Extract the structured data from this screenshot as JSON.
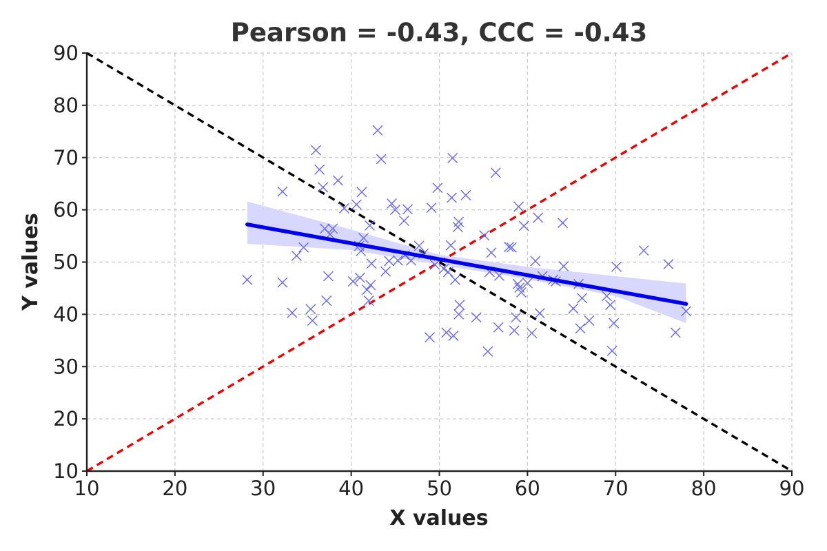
{
  "chart_data": {
    "type": "scatter",
    "title": "Pearson = -0.43, CCC = -0.43",
    "xlabel": "X values",
    "ylabel": "Y values",
    "xlim": [
      10,
      90
    ],
    "ylim": [
      10,
      90
    ],
    "xticks": [
      "10",
      "20",
      "30",
      "40",
      "50",
      "60",
      "70",
      "80",
      "90"
    ],
    "yticks": [
      "10",
      "20",
      "30",
      "40",
      "50",
      "60",
      "70",
      "80",
      "90"
    ],
    "grid": true,
    "marker": "x",
    "colors": {
      "points": "#6666f0",
      "regression": "#0000ee",
      "band": "#d6d6ff",
      "identity_line": "#ee0000",
      "anti_identity_line": "#000000",
      "grid": "#c8c8c8"
    },
    "points": [
      [
        28.2,
        46.6
      ],
      [
        32.2,
        63.5
      ],
      [
        32.2,
        46.1
      ],
      [
        33.3,
        40.3
      ],
      [
        33.8,
        51.2
      ],
      [
        34.6,
        52.8
      ],
      [
        35.4,
        41.0
      ],
      [
        35.6,
        38.8
      ],
      [
        36.0,
        71.4
      ],
      [
        36.4,
        67.7
      ],
      [
        36.8,
        64.3
      ],
      [
        37.0,
        56.4
      ],
      [
        37.2,
        42.6
      ],
      [
        37.4,
        47.3
      ],
      [
        37.6,
        55.3
      ],
      [
        37.9,
        56.4
      ],
      [
        38.5,
        65.6
      ],
      [
        39.2,
        60.3
      ],
      [
        40.2,
        46.3
      ],
      [
        40.6,
        61.0
      ],
      [
        40.9,
        53.1
      ],
      [
        41.0,
        47.0
      ],
      [
        41.1,
        52.1
      ],
      [
        41.2,
        63.4
      ],
      [
        41.4,
        54.6
      ],
      [
        41.8,
        44.7
      ],
      [
        42.0,
        42.6
      ],
      [
        42.1,
        57.0
      ],
      [
        42.2,
        45.6
      ],
      [
        42.3,
        49.7
      ],
      [
        43.0,
        75.2
      ],
      [
        43.4,
        69.7
      ],
      [
        43.9,
        48.2
      ],
      [
        44.3,
        50.2
      ],
      [
        44.6,
        61.2
      ],
      [
        45.0,
        60.0
      ],
      [
        45.3,
        50.3
      ],
      [
        46.0,
        57.9
      ],
      [
        46.1,
        51.3
      ],
      [
        46.4,
        60.1
      ],
      [
        46.8,
        50.3
      ],
      [
        47.7,
        53.1
      ],
      [
        48.2,
        51.6
      ],
      [
        48.9,
        35.6
      ],
      [
        49.1,
        60.4
      ],
      [
        49.5,
        49.5
      ],
      [
        49.8,
        64.2
      ],
      [
        50.5,
        48.7
      ],
      [
        50.8,
        36.5
      ],
      [
        51.0,
        48.1
      ],
      [
        51.3,
        53.2
      ],
      [
        51.4,
        62.3
      ],
      [
        51.5,
        69.9
      ],
      [
        51.6,
        35.9
      ],
      [
        51.8,
        46.6
      ],
      [
        52.1,
        56.7
      ],
      [
        52.2,
        57.7
      ],
      [
        52.2,
        40.0
      ],
      [
        52.3,
        41.8
      ],
      [
        53.0,
        62.8
      ],
      [
        54.2,
        39.4
      ],
      [
        55.1,
        55.1
      ],
      [
        55.5,
        32.9
      ],
      [
        55.7,
        48.1
      ],
      [
        55.9,
        51.8
      ],
      [
        56.4,
        67.1
      ],
      [
        56.7,
        37.5
      ],
      [
        56.8,
        47.4
      ],
      [
        57.9,
        52.9
      ],
      [
        58.2,
        52.8
      ],
      [
        58.5,
        36.9
      ],
      [
        58.7,
        39.4
      ],
      [
        58.9,
        45.8
      ],
      [
        59.0,
        60.6
      ],
      [
        59.1,
        45.1
      ],
      [
        59.3,
        44.2
      ],
      [
        59.6,
        56.9
      ],
      [
        60.0,
        46.0
      ],
      [
        60.5,
        36.4
      ],
      [
        60.9,
        50.2
      ],
      [
        61.4,
        40.2
      ],
      [
        61.7,
        47.3
      ],
      [
        61.2,
        58.5
      ],
      [
        62.9,
        46.6
      ],
      [
        63.2,
        46.3
      ],
      [
        64.0,
        57.5
      ],
      [
        64.1,
        49.2
      ],
      [
        65.2,
        41.1
      ],
      [
        65.8,
        45.8
      ],
      [
        66.0,
        37.3
      ],
      [
        66.2,
        43.1
      ],
      [
        67.0,
        38.8
      ],
      [
        69.0,
        43.5
      ],
      [
        69.4,
        41.8
      ],
      [
        69.6,
        33.0
      ],
      [
        69.8,
        38.3
      ],
      [
        70.1,
        49.1
      ],
      [
        73.2,
        52.2
      ],
      [
        76.0,
        49.6
      ],
      [
        76.8,
        36.5
      ],
      [
        78.0,
        40.6
      ]
    ],
    "regression": {
      "x0": 28.2,
      "y0": 57.2,
      "x1": 78.0,
      "y1": 42.0
    },
    "confidence_band": {
      "x": [
        28.2,
        40.0,
        50.0,
        60.0,
        70.0,
        78.0
      ],
      "lower": [
        53.5,
        52.3,
        49.5,
        46.7,
        43.5,
        38.3
      ],
      "upper": [
        61.6,
        56.2,
        51.4,
        49.1,
        47.3,
        45.9
      ]
    },
    "reference_lines": [
      {
        "name": "identity",
        "from": [
          10,
          10
        ],
        "to": [
          90,
          90
        ]
      },
      {
        "name": "anti-identity",
        "from": [
          10,
          90
        ],
        "to": [
          90,
          10
        ]
      }
    ]
  }
}
